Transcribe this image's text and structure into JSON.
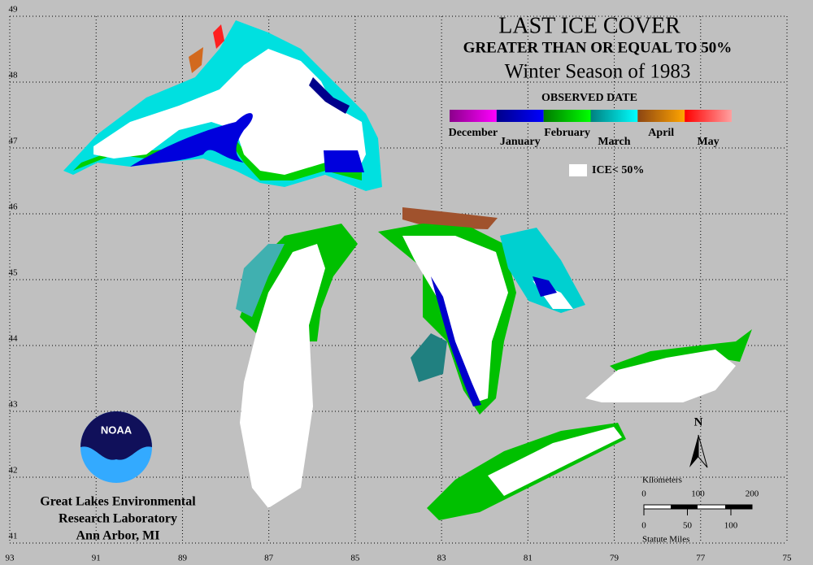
{
  "title": "LAST ICE COVER",
  "subtitle": "GREATER THAN OR EQUAL TO 50%",
  "season": "Winter Season of 1983",
  "legend": {
    "title": "OBSERVED DATE",
    "months": [
      {
        "label": "December",
        "colors": [
          "#8b008b",
          "#ff00ff"
        ]
      },
      {
        "label": "January",
        "colors": [
          "#00008b",
          "#0000ff"
        ]
      },
      {
        "label": "February",
        "colors": [
          "#007a00",
          "#00ff00"
        ]
      },
      {
        "label": "March",
        "colors": [
          "#008080",
          "#00ffff"
        ]
      },
      {
        "label": "April",
        "colors": [
          "#8b4513",
          "#ffa500"
        ]
      },
      {
        "label": "May",
        "colors": [
          "#ff0000",
          "#ffa0a0"
        ]
      }
    ],
    "ice_label": "ICE< 50%"
  },
  "longitude_labels": [
    93,
    91,
    89,
    87,
    85,
    83,
    81,
    79,
    77,
    75
  ],
  "latitude_labels": [
    49,
    48,
    47,
    46,
    45,
    44,
    43,
    42,
    41
  ],
  "logo": "NOAA",
  "lab": [
    "Great Lakes Environmental",
    "Research Laboratory",
    "Ann Arbor, MI"
  ],
  "north": "N",
  "scale": {
    "km_title": "Kilometers",
    "km_ticks": [
      0,
      100,
      200
    ],
    "mi_ticks": [
      0,
      50,
      100
    ],
    "mi_title": "Statute Miles"
  }
}
